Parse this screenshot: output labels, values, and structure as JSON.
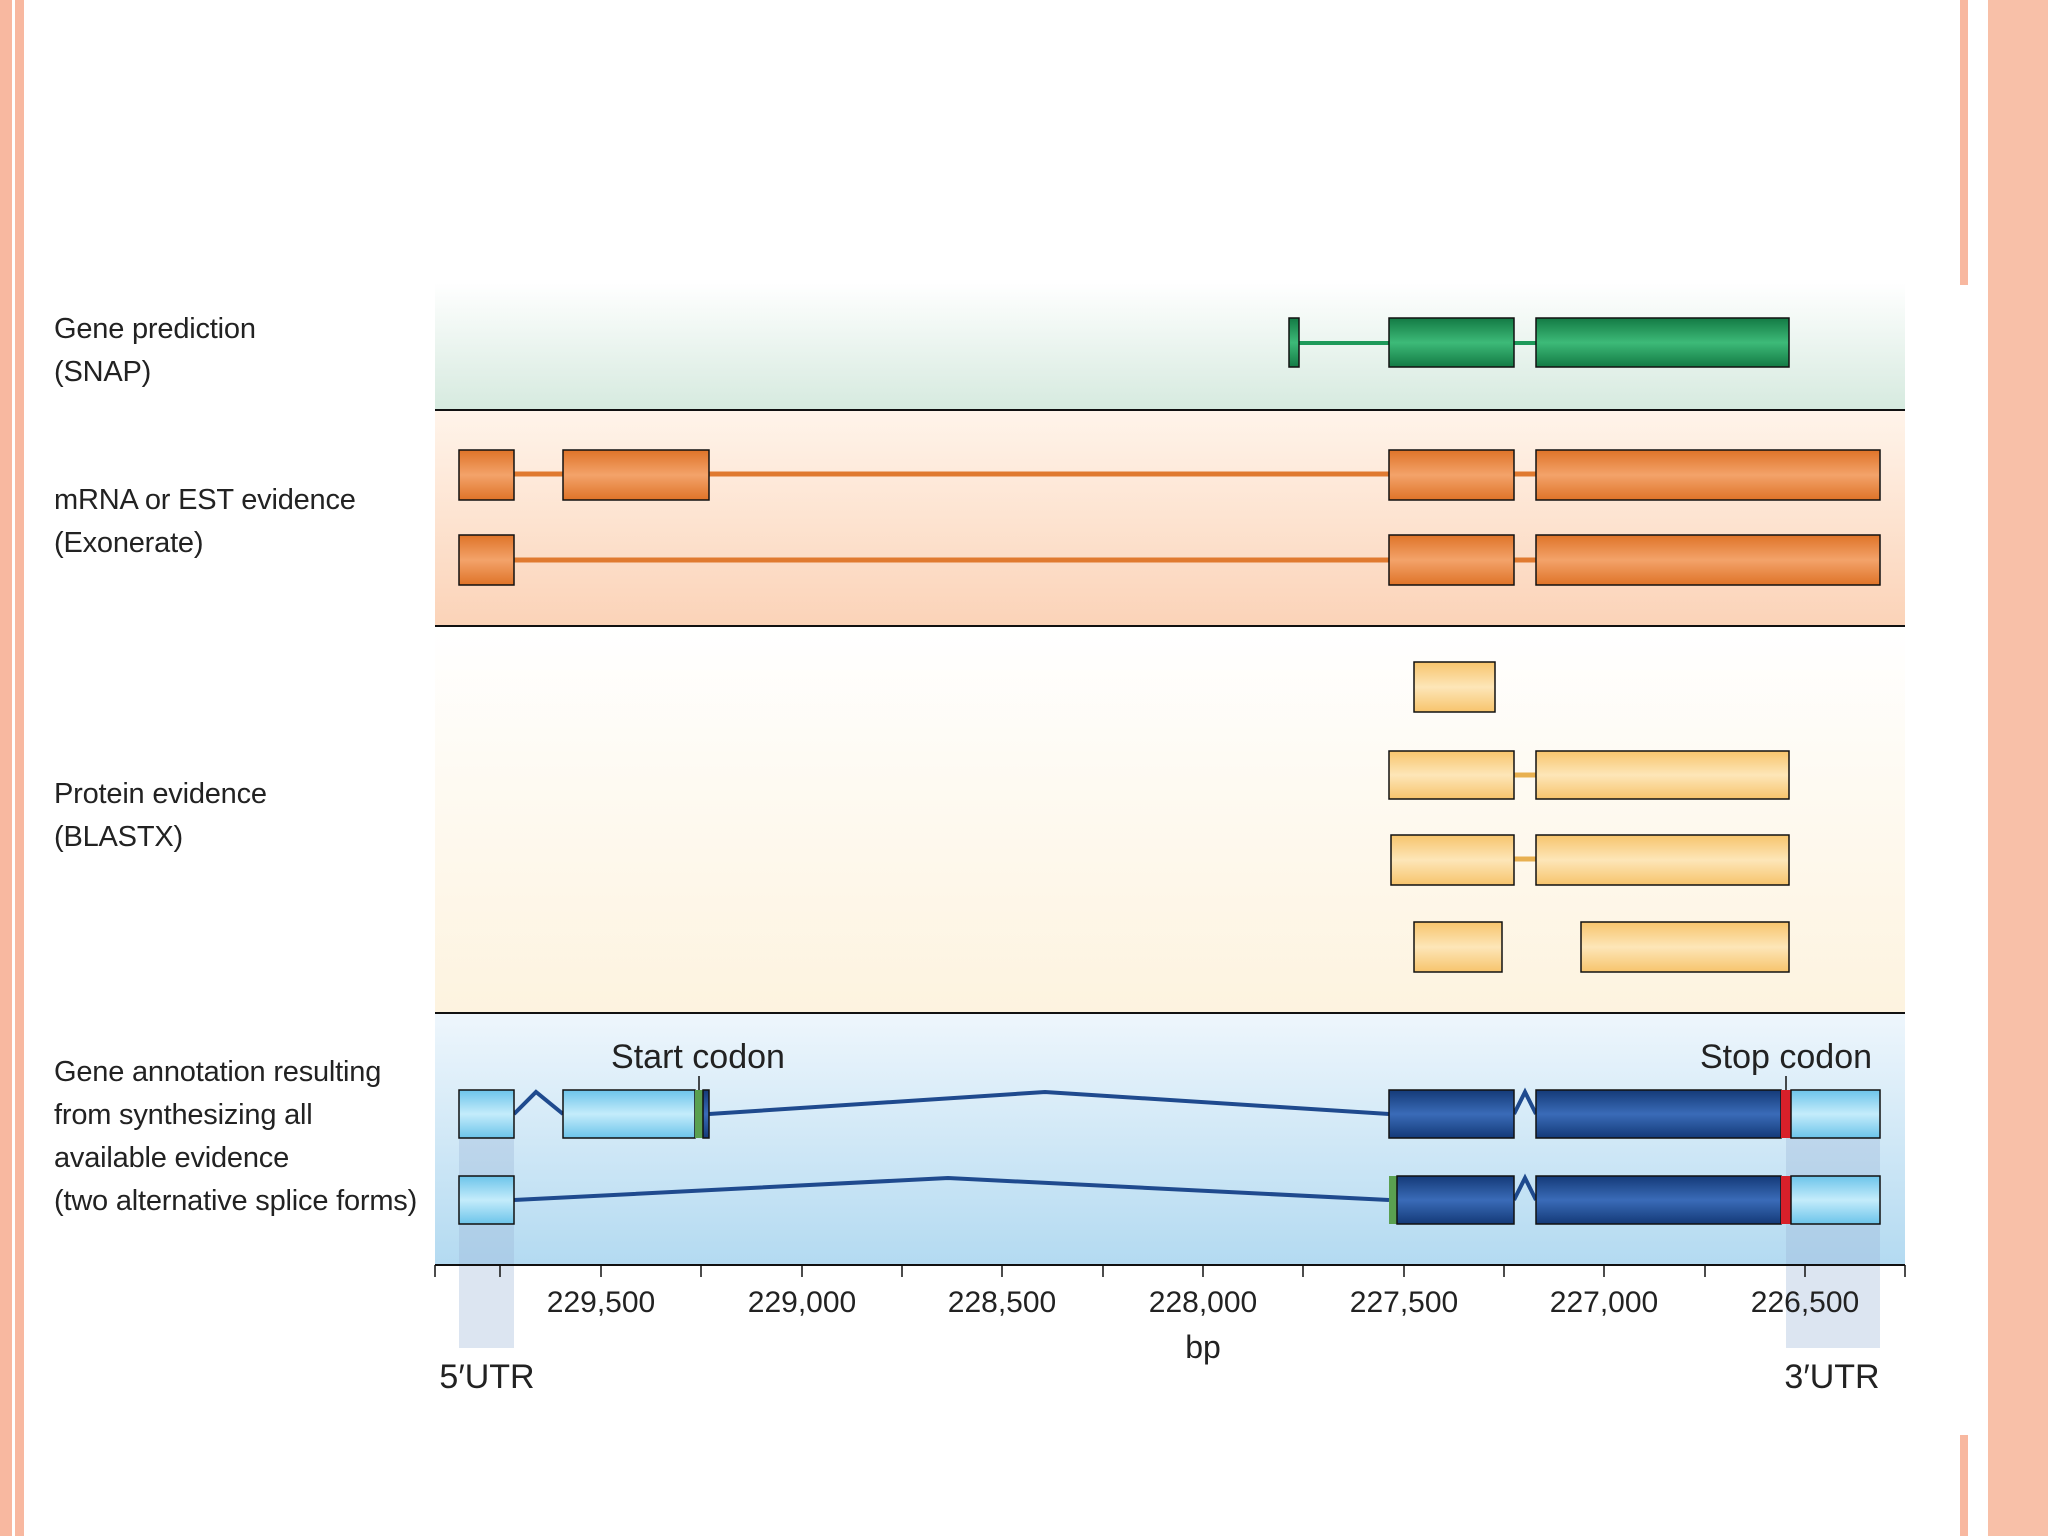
{
  "tracks": {
    "snap": {
      "label": "Gene prediction\n(SNAP)"
    },
    "exonerate": {
      "label": "mRNA or EST evidence\n(Exonerate)"
    },
    "blastx": {
      "label": "Protein evidence\n(BLASTX)"
    },
    "annotation": {
      "label": "Gene annotation resulting\nfrom synthesizing all\navailable evidence\n(two alternative splice forms)"
    }
  },
  "annotations": {
    "start_codon": "Start codon",
    "stop_codon": "Stop codon",
    "utr5": "5′UTR",
    "utr3": "3′UTR"
  },
  "axis": {
    "unit": "bp",
    "tick_labels": [
      "229,500",
      "229,000",
      "228,500",
      "228,000",
      "227,500",
      "227,000",
      "226,500"
    ]
  },
  "colors": {
    "snap": "#1e9a5a",
    "exonerate": "#e8843c",
    "blastx": "#fcd48a",
    "coding": "#1f4a8e",
    "utr": "#8fd3ef",
    "start": "#5aa050",
    "stop": "#d8202a"
  }
}
